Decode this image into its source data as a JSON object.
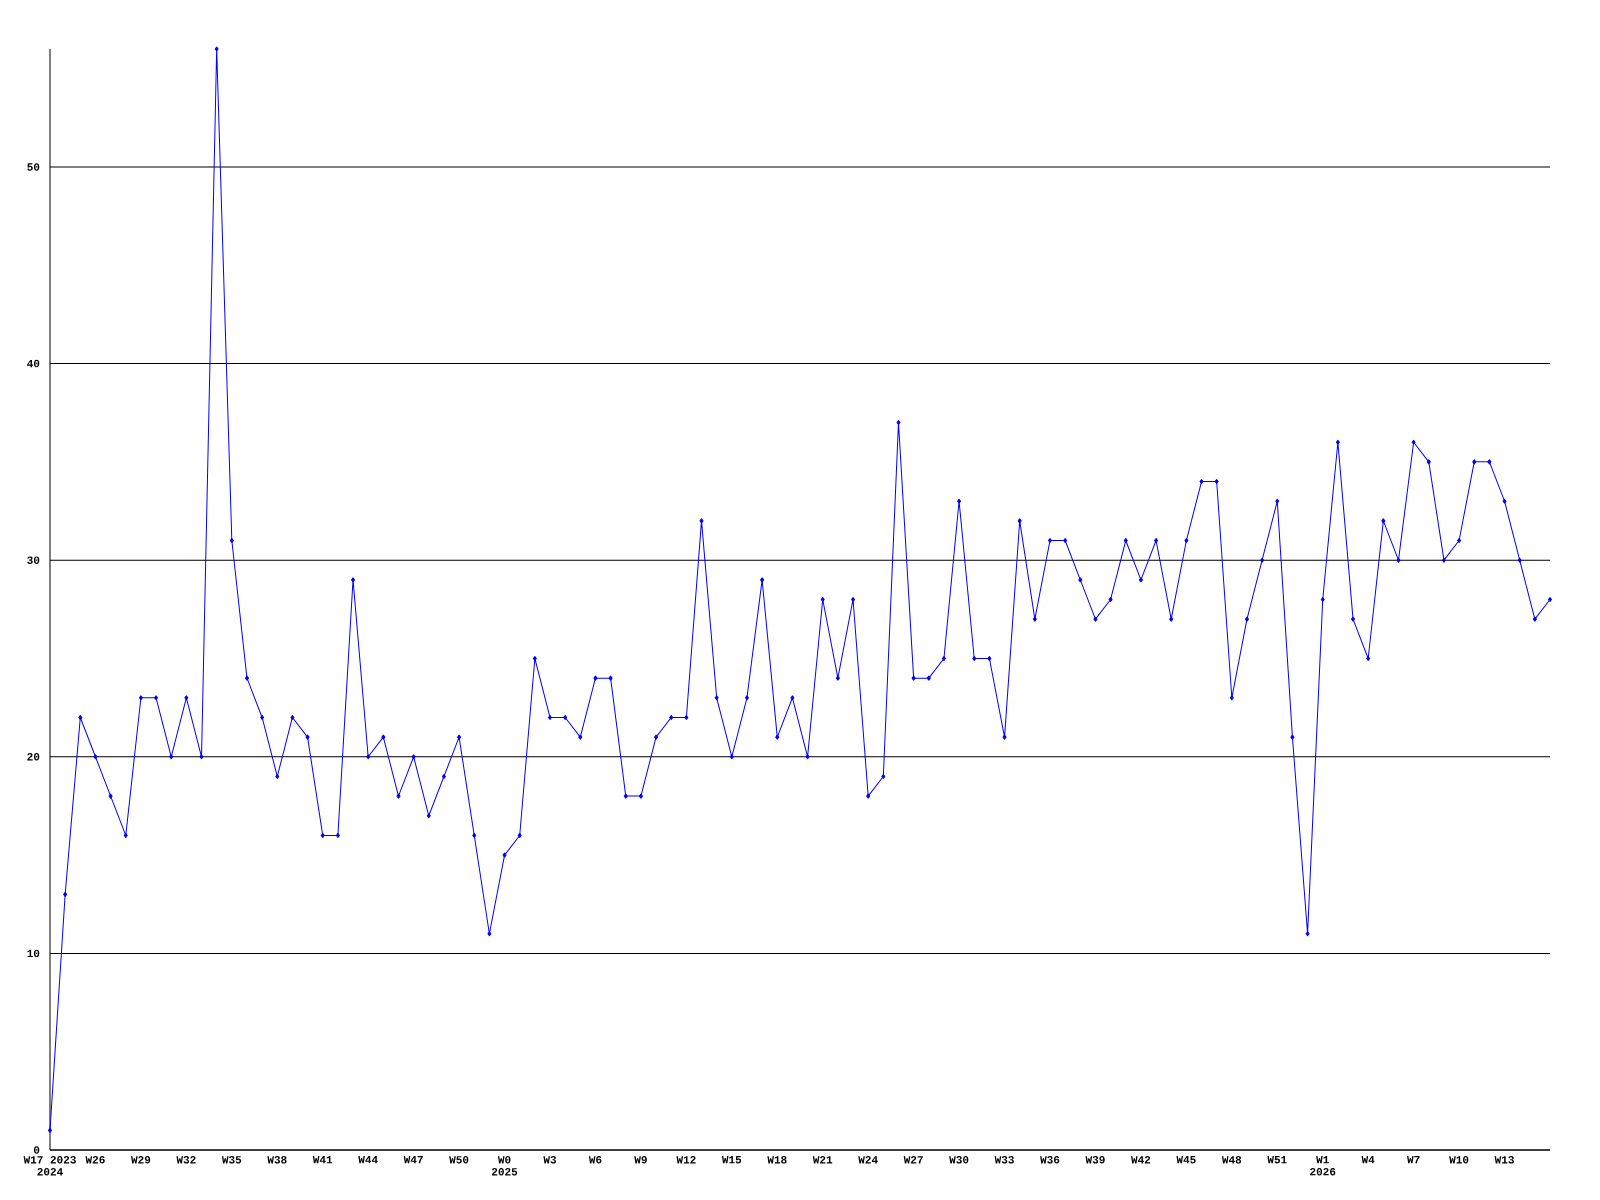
{
  "chart_data": {
    "type": "line",
    "color": "#0000ff",
    "marker": "diamond",
    "grid": "y",
    "categories": [
      "W17 2023 2024",
      null,
      null,
      "W26",
      null,
      null,
      "W29",
      null,
      null,
      "W32",
      null,
      null,
      "W35",
      null,
      null,
      "W38",
      null,
      null,
      "W41",
      null,
      null,
      "W44",
      null,
      null,
      "W47",
      null,
      null,
      "W50",
      null,
      null,
      "W0 2025",
      null,
      null,
      "W3",
      null,
      null,
      "W6",
      null,
      null,
      "W9",
      null,
      null,
      "W12",
      null,
      null,
      "W15",
      null,
      null,
      "W18",
      null,
      null,
      "W21",
      null,
      null,
      "W24",
      null,
      null,
      "W27",
      null,
      null,
      "W30",
      null,
      null,
      "W33",
      null,
      null,
      "W36",
      null,
      null,
      "W39",
      null,
      null,
      "W42",
      null,
      null,
      "W45",
      null,
      null,
      "W48",
      null,
      null,
      "W51",
      null,
      null,
      "W1 2026",
      null,
      null,
      "W4",
      null,
      null,
      "W7",
      null,
      null,
      "W10",
      null,
      null,
      "W13",
      null,
      null,
      null
    ],
    "values": [
      1,
      13,
      22,
      20,
      18,
      16,
      23,
      23,
      20,
      23,
      20,
      56,
      31,
      24,
      22,
      19,
      22,
      21,
      16,
      16,
      29,
      20,
      21,
      18,
      20,
      17,
      19,
      21,
      16,
      11,
      15,
      16,
      25,
      22,
      22,
      21,
      24,
      24,
      18,
      18,
      21,
      22,
      22,
      32,
      23,
      20,
      23,
      29,
      21,
      23,
      20,
      28,
      24,
      28,
      18,
      19,
      37,
      24,
      24,
      25,
      33,
      25,
      25,
      21,
      32,
      27,
      31,
      31,
      29,
      27,
      28,
      31,
      29,
      31,
      27,
      31,
      34,
      34,
      23,
      27,
      30,
      33,
      21,
      11,
      28,
      36,
      27,
      25,
      32,
      30,
      36,
      35,
      30,
      31,
      35,
      35,
      33,
      30,
      27,
      28
    ],
    "ylim": [
      0,
      56
    ],
    "yticks": [
      0,
      10,
      20,
      30,
      40,
      50
    ]
  }
}
